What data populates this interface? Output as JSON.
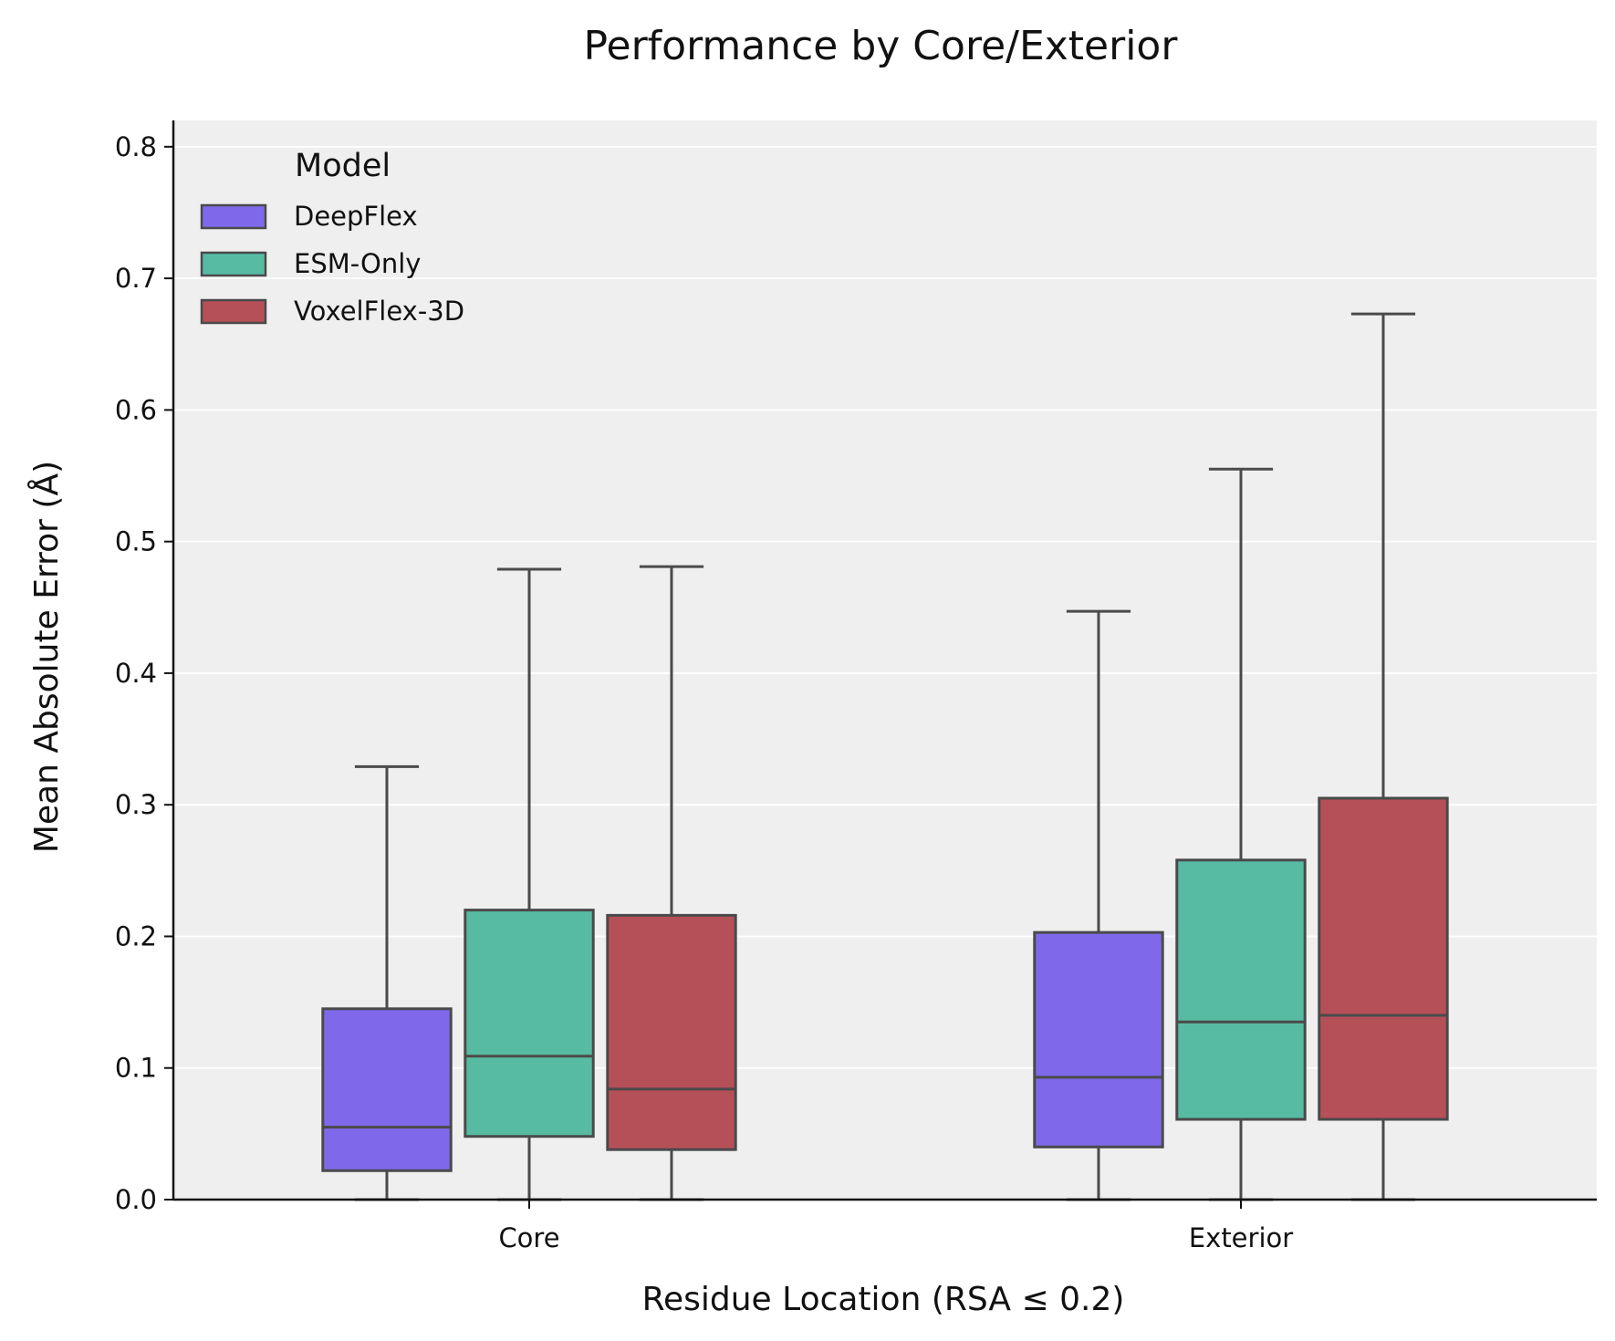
{
  "chart_data": {
    "type": "box",
    "title": "Performance by Core/Exterior",
    "xlabel": "Residue Location (RSA ≤ 0.2)",
    "ylabel": "Mean Absolute Error (Å)",
    "ylim": [
      0,
      0.82
    ],
    "yticks": [
      0.0,
      0.1,
      0.2,
      0.3,
      0.4,
      0.5,
      0.6,
      0.7,
      0.8
    ],
    "ytick_labels": [
      "0.0",
      "0.1",
      "0.2",
      "0.3",
      "0.4",
      "0.5",
      "0.6",
      "0.7",
      "0.8"
    ],
    "categories": [
      "Core",
      "Exterior"
    ],
    "grid": true,
    "background": "#efefef",
    "legend": {
      "title": "Model",
      "placement": "top-left"
    },
    "series": [
      {
        "name": "DeepFlex",
        "color": "#7f69ea",
        "boxes": [
          {
            "min": 0.0,
            "q1": 0.022,
            "median": 0.055,
            "q3": 0.145,
            "max": 0.329
          },
          {
            "min": 0.0,
            "q1": 0.04,
            "median": 0.093,
            "q3": 0.203,
            "max": 0.447
          }
        ]
      },
      {
        "name": "ESM-Only",
        "color": "#57bba2",
        "boxes": [
          {
            "min": 0.0,
            "q1": 0.048,
            "median": 0.109,
            "q3": 0.22,
            "max": 0.479
          },
          {
            "min": 0.0,
            "q1": 0.061,
            "median": 0.135,
            "q3": 0.258,
            "max": 0.555
          }
        ]
      },
      {
        "name": "VoxelFlex-3D",
        "color": "#b65058",
        "boxes": [
          {
            "min": 0.0,
            "q1": 0.038,
            "median": 0.084,
            "q3": 0.216,
            "max": 0.481
          },
          {
            "min": 0.0,
            "q1": 0.061,
            "median": 0.14,
            "q3": 0.305,
            "max": 0.673
          }
        ]
      }
    ]
  }
}
